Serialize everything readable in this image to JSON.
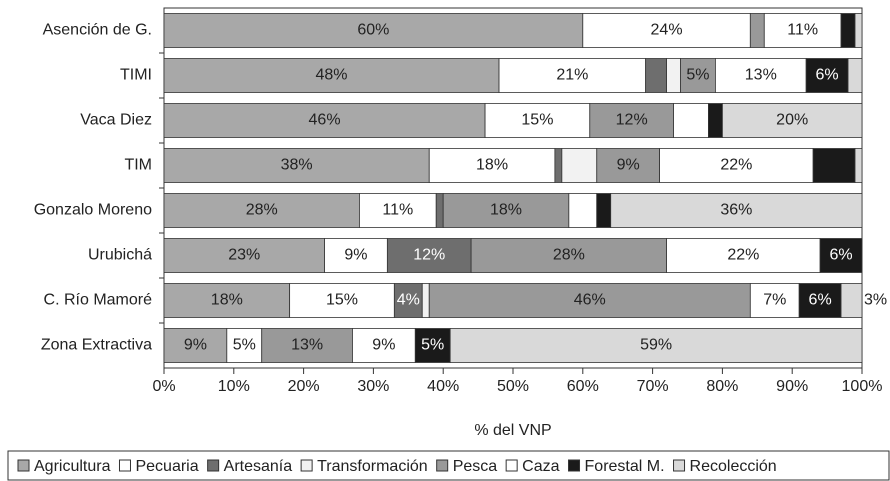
{
  "chart_data": {
    "type": "stacked_barh",
    "categories": [
      "Asención de G.",
      "TIMI",
      "Vaca Diez",
      "TIM",
      "Gonzalo Moreno",
      "Urubichá",
      "C. Río Mamoré",
      "Zona Extractiva"
    ],
    "series": [
      {
        "name": "Agricultura",
        "color": "#a8a8a8",
        "values": [
          60,
          48,
          46,
          38,
          28,
          23,
          18,
          9
        ],
        "value_labels": [
          "60%",
          "48%",
          "46%",
          "38%",
          "28%",
          "23%",
          "18%",
          "9%"
        ]
      },
      {
        "name": "Pecuaria",
        "color": "#ffffff",
        "values": [
          24,
          21,
          15,
          18,
          11,
          9,
          15,
          5
        ],
        "value_labels": [
          "24%",
          "21%",
          "15%",
          "18%",
          "11%",
          "9%",
          "15%",
          "5%"
        ]
      },
      {
        "name": "Artesanía",
        "color": "#6e6e6e",
        "values": [
          0,
          3,
          0,
          1,
          1,
          12,
          4,
          0
        ],
        "value_labels": [
          null,
          null,
          null,
          null,
          null,
          "12%",
          "4%",
          null
        ]
      },
      {
        "name": "Transformación",
        "color": "#f2f2f2",
        "values": [
          0,
          2,
          0,
          5,
          0,
          0,
          1,
          0
        ],
        "value_labels": [
          null,
          null,
          null,
          null,
          null,
          null,
          null,
          null
        ]
      },
      {
        "name": "Pesca",
        "color": "#999999",
        "values": [
          2,
          5,
          12,
          9,
          18,
          28,
          46,
          13
        ],
        "value_labels": [
          null,
          "5%",
          "12%",
          "9%",
          "18%",
          "28%",
          "46%",
          "13%"
        ]
      },
      {
        "name": "Caza",
        "color": "#ffffff",
        "values": [
          11,
          13,
          5,
          22,
          4,
          22,
          7,
          9
        ],
        "value_labels": [
          "11%",
          "13%",
          null,
          "22%",
          null,
          "22%",
          "7%",
          "9%"
        ]
      },
      {
        "name": "Forestal M.",
        "color": "#1a1a1a",
        "values": [
          2,
          6,
          2,
          6,
          2,
          6,
          6,
          5
        ],
        "value_labels": [
          null,
          "6%",
          null,
          null,
          null,
          "6%",
          "6%",
          "5%"
        ]
      },
      {
        "name": "Recolección",
        "color": "#d9d9d9",
        "values": [
          1,
          2,
          20,
          1,
          36,
          0,
          3,
          59
        ],
        "value_labels": [
          null,
          null,
          "20%",
          null,
          "36%",
          null,
          "3%",
          "59%"
        ]
      }
    ],
    "x_label": "% del VNP",
    "xlim": [
      0,
      100
    ],
    "xticks": [
      {
        "value": 0,
        "label": "0%"
      },
      {
        "value": 10,
        "label": "10%"
      },
      {
        "value": 20,
        "label": "20%"
      },
      {
        "value": 30,
        "label": "30%"
      },
      {
        "value": 40,
        "label": "40%"
      },
      {
        "value": 50,
        "label": "50%"
      },
      {
        "value": 60,
        "label": "60%"
      },
      {
        "value": 70,
        "label": "70%"
      },
      {
        "value": 80,
        "label": "80%"
      },
      {
        "value": 90,
        "label": "90%"
      },
      {
        "value": 100,
        "label": "100%"
      }
    ],
    "grid": false,
    "legend": "bottom"
  }
}
